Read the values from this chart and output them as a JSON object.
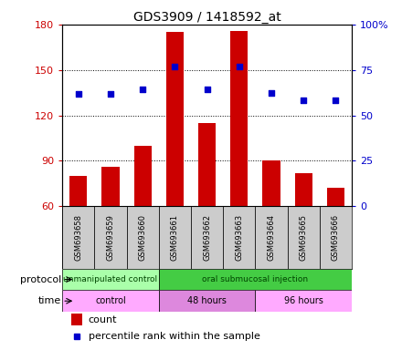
{
  "title": "GDS3909 / 1418592_at",
  "samples": [
    "GSM693658",
    "GSM693659",
    "GSM693660",
    "GSM693661",
    "GSM693662",
    "GSM693663",
    "GSM693664",
    "GSM693665",
    "GSM693666"
  ],
  "count_values": [
    80,
    86,
    100,
    175,
    115,
    176,
    90,
    82,
    72
  ],
  "percentile_values": [
    61.7,
    61.7,
    64.2,
    76.7,
    64.2,
    76.7,
    62.5,
    58.3,
    58.3
  ],
  "left_ylim": [
    60,
    180
  ],
  "right_ylim": [
    0,
    100
  ],
  "left_yticks": [
    60,
    90,
    120,
    150,
    180
  ],
  "right_yticks": [
    0,
    25,
    50,
    75,
    100
  ],
  "right_yticklabels": [
    "0",
    "25",
    "50",
    "75",
    "100%"
  ],
  "bar_color": "#cc0000",
  "dot_color": "#0000cc",
  "bar_width": 0.55,
  "protocol_groups": [
    {
      "label": "unmanipulated control",
      "start": 0,
      "end": 3,
      "color": "#aaffaa"
    },
    {
      "label": "oral submucosal injection",
      "start": 3,
      "end": 9,
      "color": "#44cc44"
    }
  ],
  "time_groups": [
    {
      "label": "control",
      "start": 0,
      "end": 3,
      "color": "#ffaaff"
    },
    {
      "label": "48 hours",
      "start": 3,
      "end": 6,
      "color": "#dd88dd"
    },
    {
      "label": "96 hours",
      "start": 6,
      "end": 9,
      "color": "#ffaaff"
    }
  ],
  "legend_count_label": "count",
  "legend_percentile_label": "percentile rank within the sample",
  "protocol_label": "protocol",
  "time_label": "time",
  "left_axis_color": "#cc0000",
  "right_axis_color": "#0000cc",
  "grid_color": "#000000",
  "xtick_bg_color": "#cccccc"
}
